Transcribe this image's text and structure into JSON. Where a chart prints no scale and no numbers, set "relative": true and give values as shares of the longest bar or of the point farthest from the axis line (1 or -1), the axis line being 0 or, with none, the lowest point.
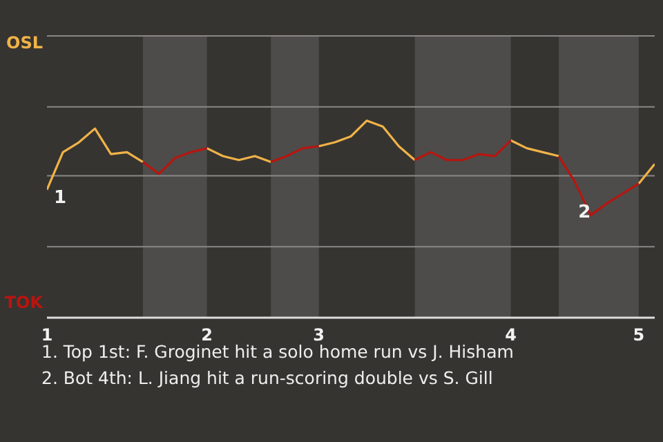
{
  "chart_data": {
    "type": "line",
    "relative": true,
    "categories": [
      "1",
      null,
      null,
      null,
      null,
      null,
      null,
      null,
      null,
      null,
      "2",
      null,
      null,
      null,
      null,
      null,
      null,
      "3",
      null,
      null,
      null,
      null,
      null,
      null,
      null,
      null,
      null,
      null,
      null,
      "4",
      null,
      null,
      null,
      null,
      null,
      null,
      null,
      "5",
      null
    ],
    "series": [
      {
        "color": "#f0b348",
        "values": [
          0.65,
          0.84,
          0.89,
          0.96,
          0.83,
          0.84,
          0.79,
          null,
          null,
          null,
          0.86,
          0.82,
          0.8,
          0.82,
          0.79,
          null,
          null,
          0.87,
          0.89,
          0.92,
          1,
          0.97,
          0.87,
          0.8,
          null,
          null,
          null,
          null,
          null,
          0.9,
          0.86,
          0.84,
          0.82,
          null,
          null,
          null,
          null,
          0.68,
          0.78
        ]
      },
      {
        "color": "#b8150f",
        "values": [
          null,
          null,
          null,
          null,
          null,
          null,
          0.79,
          0.73,
          0.81,
          0.84,
          0.86,
          null,
          null,
          null,
          0.79,
          0.82,
          0.86,
          0.87,
          null,
          null,
          null,
          null,
          null,
          0.8,
          0.84,
          0.8,
          0.8,
          0.83,
          0.82,
          0.9,
          null,
          null,
          0.82,
          0.69,
          0.52,
          0.58,
          0.63,
          0.68,
          null
        ]
      }
    ],
    "ref_lines": [
      {
        "axis": "y",
        "value": 0.36,
        "color": "#8a8886"
      },
      {
        "axis": "y",
        "value": 0.72,
        "color": "#8a8886"
      },
      {
        "axis": "y",
        "value": 1.07,
        "color": "#8a8886"
      },
      {
        "axis": "y",
        "value": 1.43,
        "color": "#8a8886"
      }
    ],
    "annotations": [
      "OSL",
      "TOK",
      {
        "text": "1",
        "x": "1",
        "y": 0.65
      },
      {
        "text": "2",
        "y": 0.52
      },
      "1. Top 1st: F. Groginet hit a solo home run vs J. Hisham",
      "2. Bot 4th: L. Jiang hit a run-scoring double vs S. Gill"
    ]
  }
}
